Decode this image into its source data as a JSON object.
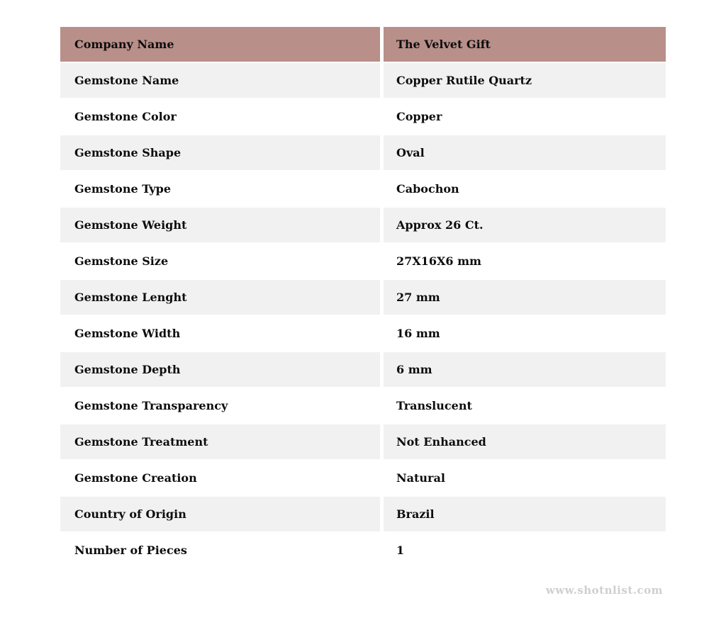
{
  "theme": {
    "page_background": "#ffffff",
    "header_background": "#b98f89",
    "stripe_background": "#f1f1f1",
    "row_background": "#ffffff",
    "text_color": "#0d0d0d",
    "watermark_color": "#cfcfcf"
  },
  "table": {
    "header": {
      "label": "Company Name",
      "value": "The Velvet Gift"
    },
    "rows": [
      {
        "label": "Gemstone Name",
        "value": "Copper Rutile Quartz"
      },
      {
        "label": "Gemstone Color",
        "value": "Copper"
      },
      {
        "label": "Gemstone Shape",
        "value": "Oval"
      },
      {
        "label": "Gemstone Type",
        "value": "Cabochon"
      },
      {
        "label": "Gemstone Weight",
        "value": "Approx 26 Ct."
      },
      {
        "label": "Gemstone Size",
        "value": "27X16X6 mm"
      },
      {
        "label": "Gemstone Lenght",
        "value": "27 mm"
      },
      {
        "label": "Gemstone Width",
        "value": "16 mm"
      },
      {
        "label": "Gemstone Depth",
        "value": "6 mm"
      },
      {
        "label": "Gemstone Transparency",
        "value": "Translucent"
      },
      {
        "label": "Gemstone Treatment",
        "value": "Not Enhanced"
      },
      {
        "label": "Gemstone Creation",
        "value": "Natural"
      },
      {
        "label": "Country of Origin",
        "value": "Brazil"
      },
      {
        "label": "Number of Pieces",
        "value": "1"
      }
    ]
  },
  "watermark": "www.shotnlist.com"
}
